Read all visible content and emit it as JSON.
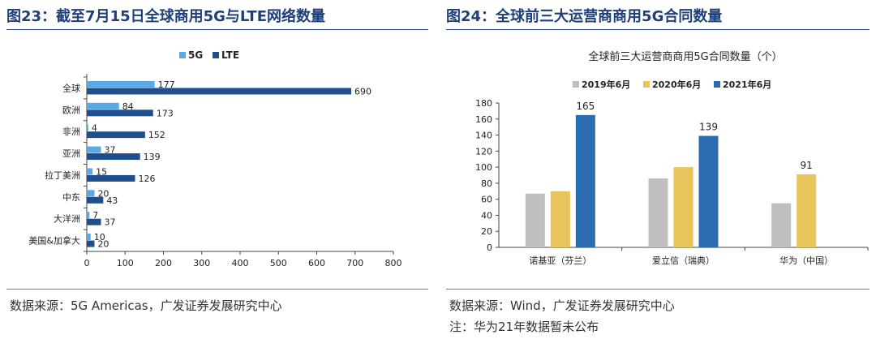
{
  "panels": {
    "left": {
      "title": "图23：截至7月15日全球商用5G与LTE网络数量",
      "source": "数据来源：5G Americas，广发证券发展研究中心"
    },
    "right": {
      "title": "图24：全球前三大运营商商用5G合同数量",
      "source": "数据来源：Wind，广发证券发展研究中心",
      "note": "注：华为21年数据暂未公布"
    }
  },
  "colors": {
    "series_5g": "#5aa9e6",
    "series_lte": "#1f4e8c",
    "bar_2019": "#bfbfbf",
    "bar_2020": "#e8c55a",
    "bar_2021": "#2b6cb0",
    "title_blue": "#1f3f7a"
  },
  "chart_data": [
    {
      "type": "bar",
      "orientation": "horizontal",
      "title": "",
      "categories": [
        "全球",
        "欧洲",
        "非洲",
        "亚洲",
        "拉丁美洲",
        "中东",
        "大洋洲",
        "美国&加拿大"
      ],
      "series": [
        {
          "name": "5G",
          "values": [
            177,
            84,
            4,
            37,
            15,
            20,
            7,
            10
          ]
        },
        {
          "name": "LTE",
          "values": [
            690,
            173,
            152,
            139,
            126,
            43,
            37,
            20
          ]
        }
      ],
      "xlim": [
        0,
        800
      ],
      "xticks": [
        0,
        100,
        200,
        300,
        400,
        500,
        600,
        700,
        800
      ],
      "legend": "top-center",
      "grid": false
    },
    {
      "type": "bar",
      "orientation": "vertical",
      "title": "全球前三大运营商商用5G合同数量（个）",
      "categories": [
        "诺基亚（芬兰）",
        "爱立信（瑞典）",
        "华为（中国）"
      ],
      "series": [
        {
          "name": "2019年6月",
          "values": [
            67,
            86,
            55
          ]
        },
        {
          "name": "2020年6月",
          "values": [
            70,
            100,
            91
          ]
        },
        {
          "name": "2021年6月",
          "values": [
            165,
            139,
            null
          ]
        }
      ],
      "labeled_values": [
        {
          "series": 2,
          "category": 0,
          "text": "165"
        },
        {
          "series": 2,
          "category": 1,
          "text": "139"
        },
        {
          "series": 1,
          "category": 2,
          "text": "91"
        }
      ],
      "ylim": [
        0,
        180
      ],
      "yticks": [
        0,
        20,
        40,
        60,
        80,
        100,
        120,
        140,
        160,
        180
      ],
      "legend": "top-center",
      "grid": false
    }
  ]
}
